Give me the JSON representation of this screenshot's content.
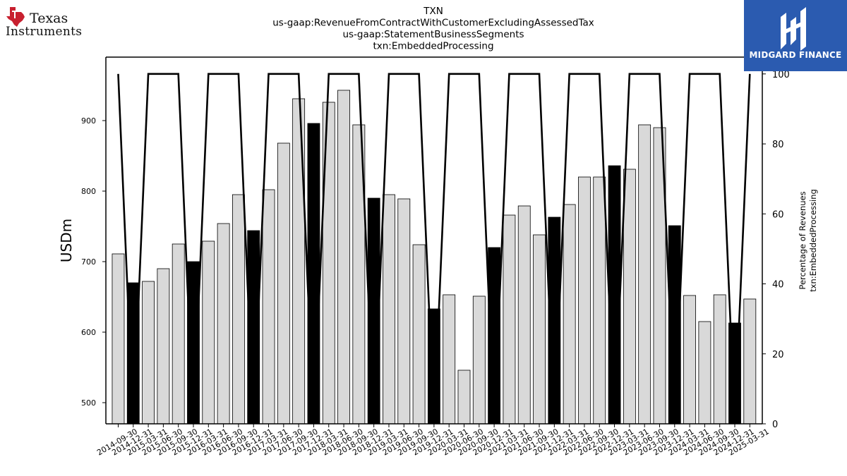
{
  "company_logo": {
    "line1": "Texas",
    "line2": "Instruments"
  },
  "watermark": {
    "text": "MIDGARD FINANCE"
  },
  "chart_data": {
    "type": "bar",
    "title": [
      "TXN",
      "us-gaap:RevenueFromContractWithCustomerExcludingAssessedTax",
      "us-gaap:StatementBusinessSegments",
      "txn:EmbeddedProcessing"
    ],
    "ylabel": "USDm",
    "y2label": [
      "Percentage of Revenues",
      "txn:EmbeddedProcessing"
    ],
    "ylim": [
      470,
      990
    ],
    "y2lim": [
      0,
      104.8
    ],
    "yticks": [
      500,
      600,
      700,
      800,
      900
    ],
    "y2ticks": [
      0,
      20,
      40,
      60,
      80,
      100
    ],
    "categories": [
      "2014-09-30",
      "2014-12-31",
      "2015-03-31",
      "2015-06-30",
      "2015-09-30",
      "2015-12-31",
      "2016-03-31",
      "2016-06-30",
      "2016-09-30",
      "2016-12-31",
      "2017-03-31",
      "2017-06-30",
      "2017-09-30",
      "2017-12-31",
      "2018-03-31",
      "2018-06-30",
      "2018-09-30",
      "2018-12-31",
      "2019-03-31",
      "2019-06-30",
      "2019-09-30",
      "2019-12-31",
      "2020-03-31",
      "2020-06-30",
      "2020-09-30",
      "2020-12-31",
      "2021-03-31",
      "2021-06-30",
      "2021-09-30",
      "2021-12-31",
      "2022-03-31",
      "2022-06-30",
      "2022-09-30",
      "2022-12-31",
      "2023-03-31",
      "2023-06-30",
      "2023-09-30",
      "2023-12-31",
      "2024-03-31",
      "2024-06-30",
      "2024-09-30",
      "2024-12-31",
      "2025-03-31"
    ],
    "series": [
      {
        "kind": "bar",
        "values": [
          711,
          670,
          672,
          690,
          725,
          700,
          729,
          754,
          795,
          744,
          802,
          868,
          931,
          896,
          926,
          943,
          894,
          790,
          795,
          789,
          724,
          633,
          653,
          546,
          651,
          720,
          766,
          779,
          738,
          763,
          781,
          820,
          820,
          836,
          831,
          894,
          890,
          751,
          652,
          615,
          653,
          613,
          647
        ],
        "highlighted": [
          false,
          true,
          false,
          false,
          false,
          true,
          false,
          false,
          false,
          true,
          false,
          false,
          false,
          true,
          false,
          false,
          false,
          true,
          false,
          false,
          false,
          true,
          false,
          false,
          false,
          true,
          false,
          false,
          false,
          true,
          false,
          false,
          false,
          true,
          false,
          false,
          false,
          true,
          false,
          false,
          false,
          true,
          false
        ],
        "colors": {
          "normal": "#d9d9d9",
          "highlight": "#000000",
          "edge": "#000000"
        }
      },
      {
        "kind": "line",
        "axis": "right",
        "values": [
          100,
          0,
          100,
          100,
          100,
          0,
          100,
          100,
          100,
          0,
          100,
          100,
          100,
          0,
          100,
          100,
          100,
          0,
          100,
          100,
          100,
          0,
          100,
          100,
          100,
          0,
          100,
          100,
          100,
          0,
          100,
          100,
          100,
          0,
          100,
          100,
          100,
          0,
          100,
          100,
          100,
          0,
          100
        ],
        "color": "#000000"
      }
    ],
    "grid": false,
    "legend": "none"
  }
}
